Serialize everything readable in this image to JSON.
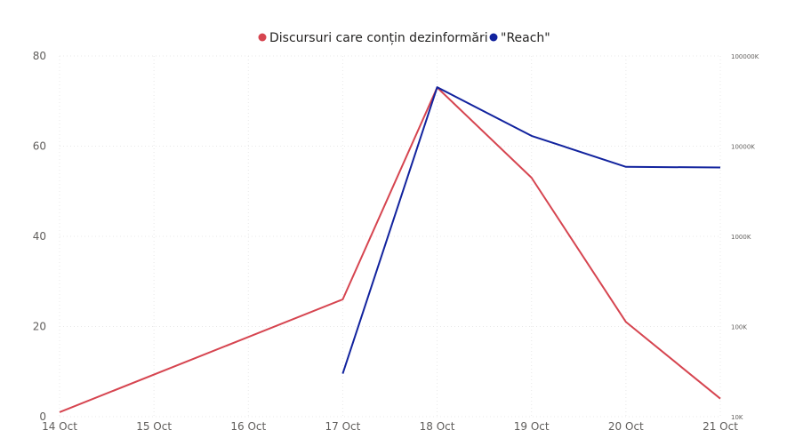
{
  "chart_data": {
    "type": "line",
    "x": [
      "14 Oct",
      "15 Oct",
      "16 Oct",
      "17 Oct",
      "18 Oct",
      "19 Oct",
      "20 Oct",
      "21 Oct"
    ],
    "series": [
      {
        "name": "Discursuri care conțin dezinformări",
        "axis": "left",
        "color": "#d64550",
        "values": [
          1,
          null,
          null,
          26,
          73,
          53,
          21,
          4
        ]
      },
      {
        "name": "\"Reach\"",
        "axis": "right",
        "color": "#12239e",
        "values": [
          null,
          null,
          null,
          30,
          45000,
          13000,
          5900,
          5800
        ]
      }
    ],
    "y_left": {
      "ticks": [
        "0",
        "20",
        "40",
        "60",
        "80"
      ],
      "ylim": [
        0,
        80
      ]
    },
    "y_right": {
      "scale": "log",
      "ticks": [
        "10K",
        "100K",
        "1000K",
        "10000K",
        "100000K"
      ],
      "ylim_thousands": [
        10,
        100000
      ]
    },
    "legend_placement": "top-center",
    "grid": true
  }
}
